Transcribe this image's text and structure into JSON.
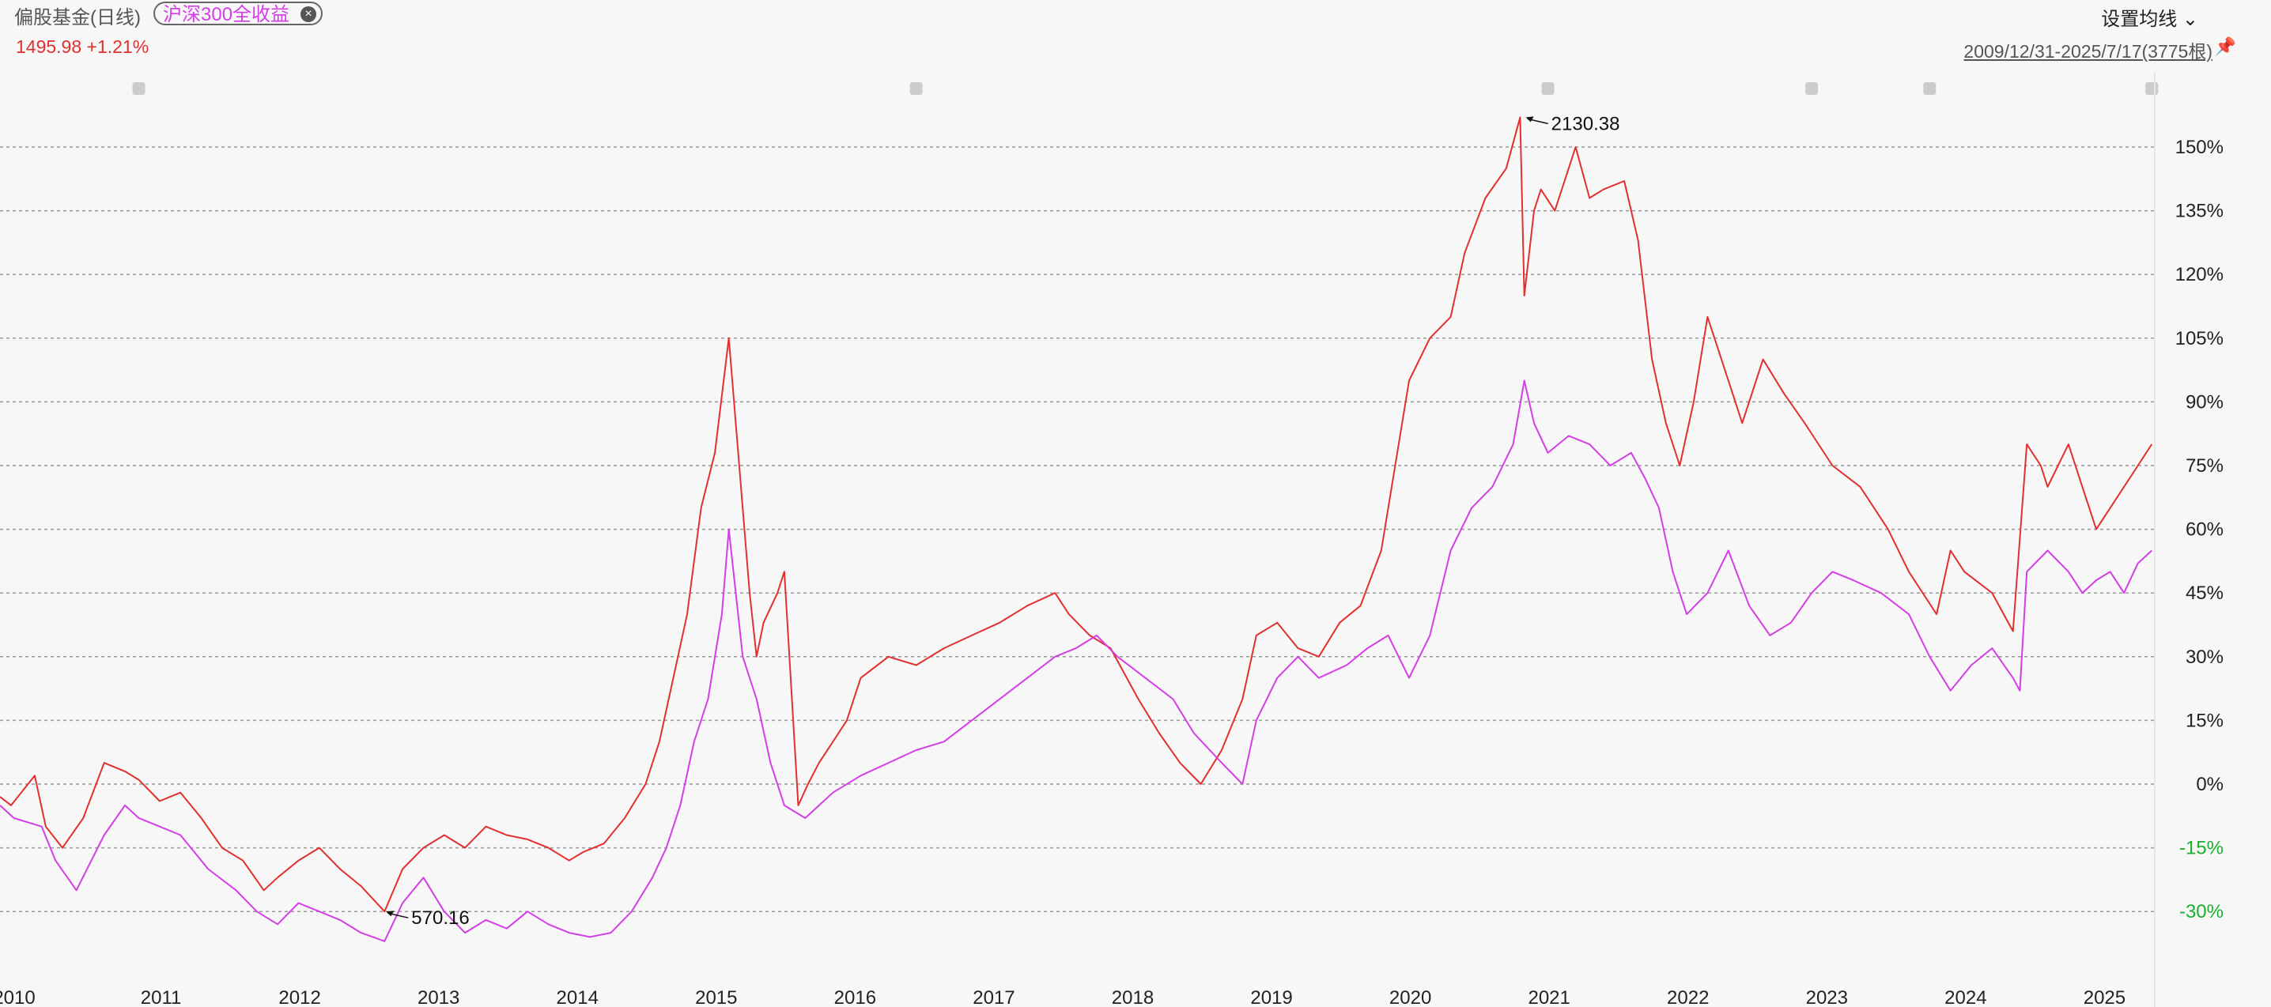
{
  "header": {
    "title": "偏股基金(日线)",
    "compare_chip": "沪深300全收益",
    "chip_close_icon": "close-circle-icon",
    "last_value": "1495.98",
    "last_change": "+1.21%",
    "settings_label": "设置均线",
    "settings_icon": "chevron-down-icon",
    "date_range": "2009/12/31-2025/7/17(3775根)",
    "pin_icon": "pin-icon"
  },
  "colors": {
    "fund": "#e2302e",
    "index": "#d43ee6",
    "positive": "#222222",
    "negative": "#18b02c",
    "grid": "#999999"
  },
  "chart_data": {
    "type": "line",
    "y_unit": "%",
    "ylim": [
      -40,
      160
    ],
    "y_ticks": [
      150,
      135,
      120,
      105,
      90,
      75,
      60,
      45,
      30,
      15,
      0,
      -15,
      -30
    ],
    "y_tick_labels": [
      "150%",
      "135%",
      "120%",
      "105%",
      "90%",
      "75%",
      "60%",
      "45%",
      "30%",
      "15%",
      "0%",
      "-15%",
      "-30%"
    ],
    "x_tick_labels": [
      "2010",
      "2011",
      "2012",
      "2013",
      "2014",
      "2015",
      "2016",
      "2017",
      "2018",
      "2019",
      "2020",
      "2021",
      "2022",
      "2023",
      "2024",
      "2025"
    ],
    "grid": true,
    "annotations": [
      {
        "text": "2130.38",
        "x": 2020.98,
        "y": 157
      },
      {
        "text": "570.16",
        "x": 2012.77,
        "y": -30
      }
    ],
    "series": [
      {
        "name": "偏股基金(日线)",
        "x": [
          2010.0,
          2010.08,
          2010.25,
          2010.33,
          2010.45,
          2010.6,
          2010.75,
          2010.9,
          2011.0,
          2011.15,
          2011.3,
          2011.45,
          2011.6,
          2011.75,
          2011.9,
          2012.0,
          2012.15,
          2012.3,
          2012.45,
          2012.6,
          2012.77,
          2012.9,
          2013.05,
          2013.2,
          2013.35,
          2013.5,
          2013.65,
          2013.8,
          2013.95,
          2014.1,
          2014.2,
          2014.35,
          2014.5,
          2014.65,
          2014.75,
          2014.85,
          2014.95,
          2015.05,
          2015.15,
          2015.25,
          2015.4,
          2015.45,
          2015.5,
          2015.6,
          2015.65,
          2015.75,
          2015.82,
          2015.9,
          2016.0,
          2016.1,
          2016.2,
          2016.4,
          2016.6,
          2016.8,
          2017.0,
          2017.2,
          2017.4,
          2017.6,
          2017.7,
          2017.85,
          2018.0,
          2018.2,
          2018.35,
          2018.5,
          2018.65,
          2018.8,
          2018.95,
          2019.05,
          2019.2,
          2019.35,
          2019.5,
          2019.65,
          2019.8,
          2019.95,
          2020.05,
          2020.15,
          2020.3,
          2020.45,
          2020.55,
          2020.7,
          2020.85,
          2020.95,
          2020.98,
          2021.05,
          2021.1,
          2021.2,
          2021.35,
          2021.45,
          2021.55,
          2021.7,
          2021.8,
          2021.9,
          2022.0,
          2022.1,
          2022.2,
          2022.3,
          2022.45,
          2022.55,
          2022.7,
          2022.85,
          2023.0,
          2023.2,
          2023.4,
          2023.6,
          2023.75,
          2023.95,
          2024.05,
          2024.15,
          2024.35,
          2024.5,
          2024.6,
          2024.7,
          2024.75,
          2024.9,
          2025.0,
          2025.1,
          2025.2,
          2025.3,
          2025.4,
          2025.5
        ],
        "values": [
          -3,
          -5,
          2,
          -10,
          -15,
          -8,
          5,
          3,
          1,
          -4,
          -2,
          -8,
          -15,
          -18,
          -25,
          -22,
          -18,
          -15,
          -20,
          -24,
          -30,
          -20,
          -15,
          -12,
          -15,
          -10,
          -12,
          -13,
          -15,
          -18,
          -16,
          -14,
          -8,
          0,
          10,
          25,
          40,
          65,
          78,
          105,
          45,
          30,
          38,
          45,
          50,
          -5,
          0,
          5,
          10,
          15,
          25,
          30,
          28,
          32,
          35,
          38,
          42,
          45,
          40,
          35,
          32,
          20,
          12,
          5,
          0,
          8,
          20,
          35,
          38,
          32,
          30,
          38,
          42,
          55,
          75,
          95,
          105,
          110,
          125,
          138,
          145,
          157,
          115,
          135,
          140,
          135,
          150,
          138,
          140,
          142,
          128,
          100,
          85,
          75,
          90,
          110,
          95,
          85,
          100,
          92,
          85,
          75,
          70,
          60,
          50,
          40,
          55,
          50,
          45,
          36,
          80,
          75,
          70,
          80,
          70,
          60,
          65,
          70,
          75,
          80
        ]
      },
      {
        "name": "沪深300全收益",
        "x": [
          2010.0,
          2010.1,
          2010.3,
          2010.4,
          2010.55,
          2010.75,
          2010.9,
          2011.0,
          2011.15,
          2011.3,
          2011.5,
          2011.7,
          2011.85,
          2012.0,
          2012.15,
          2012.3,
          2012.45,
          2012.6,
          2012.77,
          2012.9,
          2013.05,
          2013.2,
          2013.35,
          2013.5,
          2013.65,
          2013.8,
          2013.95,
          2014.1,
          2014.25,
          2014.4,
          2014.55,
          2014.7,
          2014.8,
          2014.9,
          2015.0,
          2015.1,
          2015.2,
          2015.25,
          2015.35,
          2015.45,
          2015.55,
          2015.65,
          2015.8,
          2015.9,
          2016.0,
          2016.2,
          2016.4,
          2016.6,
          2016.8,
          2017.0,
          2017.2,
          2017.4,
          2017.6,
          2017.75,
          2017.9,
          2018.05,
          2018.25,
          2018.45,
          2018.6,
          2018.8,
          2018.95,
          2019.05,
          2019.2,
          2019.35,
          2019.5,
          2019.7,
          2019.85,
          2020.0,
          2020.15,
          2020.3,
          2020.45,
          2020.6,
          2020.75,
          2020.9,
          2020.98,
          2021.05,
          2021.15,
          2021.3,
          2021.45,
          2021.6,
          2021.75,
          2021.85,
          2021.95,
          2022.05,
          2022.15,
          2022.3,
          2022.45,
          2022.6,
          2022.75,
          2022.9,
          2023.05,
          2023.2,
          2023.35,
          2023.55,
          2023.75,
          2023.9,
          2024.05,
          2024.2,
          2024.35,
          2024.5,
          2024.55,
          2024.6,
          2024.75,
          2024.9,
          2025.0,
          2025.1,
          2025.2,
          2025.3,
          2025.4,
          2025.5
        ],
        "values": [
          -5,
          -8,
          -10,
          -18,
          -25,
          -12,
          -5,
          -8,
          -10,
          -12,
          -20,
          -25,
          -30,
          -33,
          -28,
          -30,
          -32,
          -35,
          -37,
          -28,
          -22,
          -30,
          -35,
          -32,
          -34,
          -30,
          -33,
          -35,
          -36,
          -35,
          -30,
          -22,
          -15,
          -5,
          10,
          20,
          40,
          60,
          30,
          20,
          5,
          -5,
          -8,
          -5,
          -2,
          2,
          5,
          8,
          10,
          15,
          20,
          25,
          30,
          32,
          35,
          30,
          25,
          20,
          12,
          5,
          0,
          15,
          25,
          30,
          25,
          28,
          32,
          35,
          25,
          35,
          55,
          65,
          70,
          80,
          95,
          85,
          78,
          82,
          80,
          75,
          78,
          72,
          65,
          50,
          40,
          45,
          55,
          42,
          35,
          38,
          45,
          50,
          48,
          45,
          40,
          30,
          22,
          28,
          32,
          25,
          22,
          50,
          55,
          50,
          45,
          48,
          50,
          45,
          52,
          55
        ]
      }
    ]
  }
}
